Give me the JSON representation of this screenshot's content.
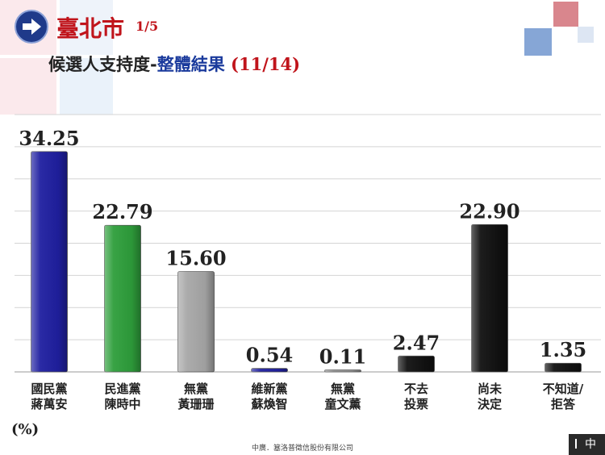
{
  "header": {
    "city": "臺北市",
    "page": "1/5",
    "subtitle_main": "候選人支持度-",
    "subtitle_highlight": "整體結果",
    "subtitle_date": "(11/14)"
  },
  "chart_data": {
    "type": "bar",
    "title": "",
    "xlabel": "",
    "ylabel": "",
    "unit_label": "(%)",
    "ylim": [
      0,
      40
    ],
    "grid": true,
    "categories": [
      [
        "國民黨",
        "蔣萬安"
      ],
      [
        "民進黨",
        "陳時中"
      ],
      [
        "無黨",
        "黃珊珊"
      ],
      [
        "維新黨",
        "蘇煥智"
      ],
      [
        "無黨",
        "童文薰"
      ],
      [
        "不去",
        "投票"
      ],
      [
        "尚未",
        "決定"
      ],
      [
        "不知道/",
        "拒答"
      ]
    ],
    "values": [
      34.25,
      22.79,
      15.6,
      0.54,
      0.11,
      2.47,
      22.9,
      1.35
    ],
    "value_labels": [
      "34.25",
      "22.79",
      "15.60",
      "0.54",
      "0.11",
      "2.47",
      "22.90",
      "1.35"
    ],
    "colors": [
      "#1f1fa0",
      "#2e9e3b",
      "#a7a7a7",
      "#1f1fa0",
      "#9a9a9a",
      "#111111",
      "#111111",
      "#111111"
    ]
  },
  "footer": {
    "source": "中廣．簊洛普徵信股份有限公司",
    "lang_button": "中"
  },
  "colors": {
    "accent_red": "#c0141b",
    "accent_blue": "#1a3a9c"
  }
}
